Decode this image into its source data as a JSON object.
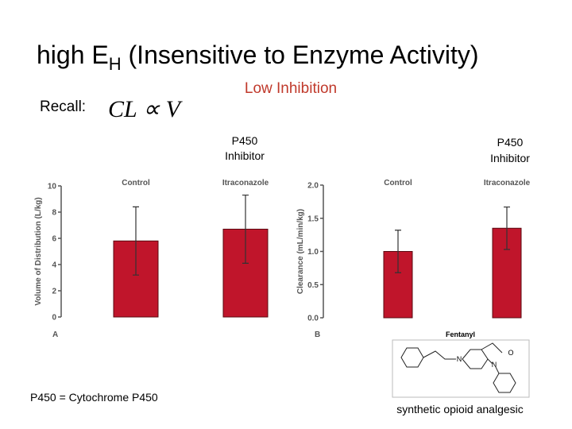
{
  "slide": {
    "title_main": "high E",
    "title_sub": "H",
    "title_rest": " (Insensitive to Enzyme Activity)",
    "recall": "Recall:",
    "formula": "CL ∝ V",
    "low_inhibition": "Low Inhibition",
    "inhibitor_left": [
      "P450",
      "Inhibitor"
    ],
    "inhibitor_right": [
      "P450",
      "Inhibitor"
    ],
    "footnote": "P450 = Cytochrome P450",
    "structure_name": "Fentanyl",
    "structure_atoms": [
      "N",
      "N",
      "O"
    ],
    "caption": "synthetic opioid analgesic"
  },
  "chart_data": [
    {
      "type": "bar",
      "panel": "A",
      "ylabel": "Volume of Distribution (L/kg)",
      "categories": [
        "Control",
        "Itraconazole"
      ],
      "values": [
        5.8,
        6.7
      ],
      "errors": [
        2.6,
        2.6
      ],
      "color": "#c0152b",
      "ylim": [
        0,
        10
      ],
      "yticks": [
        0,
        2,
        4,
        6,
        8,
        10
      ]
    },
    {
      "type": "bar",
      "panel": "B",
      "ylabel": "Clearance (mL/min/kg)",
      "categories": [
        "Control",
        "Itraconazole"
      ],
      "values": [
        1.0,
        1.35
      ],
      "errors": [
        0.32,
        0.32
      ],
      "color": "#c0152b",
      "ylim": [
        0,
        2
      ],
      "yticks": [
        {
          "value": 0,
          "label": "0.0"
        },
        0.5,
        {
          "value": 1,
          "label": "1.0"
        },
        1.5,
        {
          "value": 2,
          "label": "2.0"
        }
      ]
    }
  ]
}
